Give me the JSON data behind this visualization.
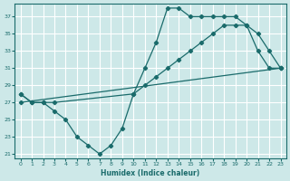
{
  "xlabel": "Humidex (Indice chaleur)",
  "bg_color": "#cde8e8",
  "grid_color": "#ffffff",
  "line_color": "#1a6b6b",
  "xlim": [
    -0.5,
    23.5
  ],
  "ylim": [
    20.5,
    38.5
  ],
  "yticks": [
    21,
    23,
    25,
    27,
    29,
    31,
    33,
    35,
    37
  ],
  "xticks": [
    0,
    1,
    2,
    3,
    4,
    5,
    6,
    7,
    8,
    9,
    10,
    11,
    12,
    13,
    14,
    15,
    16,
    17,
    18,
    19,
    20,
    21,
    22,
    23
  ],
  "line1_x": [
    0,
    1,
    2,
    3,
    4,
    5,
    6,
    7,
    8,
    9,
    10,
    11,
    12,
    13,
    14,
    15,
    16,
    17,
    18,
    19,
    20,
    21,
    22,
    23
  ],
  "line1_y": [
    28,
    27,
    27,
    26,
    25,
    23,
    22,
    21,
    22,
    24,
    28,
    31,
    34,
    38,
    38,
    37,
    37,
    37,
    37,
    37,
    36,
    33,
    31,
    31
  ],
  "line2_x": [
    0,
    1,
    2,
    3,
    10,
    11,
    12,
    13,
    14,
    15,
    16,
    17,
    18,
    19,
    20,
    21,
    22,
    23
  ],
  "line2_y": [
    28,
    27,
    27,
    27,
    28,
    29,
    30,
    31,
    32,
    33,
    34,
    35,
    36,
    36,
    36,
    35,
    33,
    31
  ],
  "line3_x": [
    0,
    23
  ],
  "line3_y": [
    27,
    31
  ]
}
